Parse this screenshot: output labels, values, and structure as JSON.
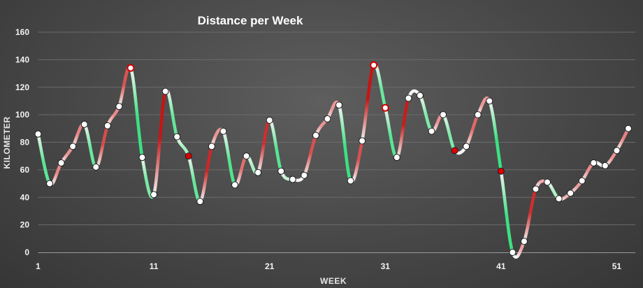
{
  "chart_data": {
    "type": "line",
    "title": "Distance per Week",
    "xlabel": "WEEK",
    "ylabel": "KILOMETER",
    "xlim": [
      1,
      52
    ],
    "ylim": [
      0,
      160
    ],
    "y_ticks": [
      0,
      20,
      40,
      60,
      80,
      100,
      120,
      140,
      160
    ],
    "x_ticks": [
      1,
      11,
      21,
      31,
      41,
      51
    ],
    "grid": true,
    "smooth": true,
    "series": [
      {
        "x": [
          1,
          2,
          3,
          4,
          5,
          6,
          7,
          8,
          9,
          10,
          11,
          12,
          13,
          14,
          15,
          16,
          17,
          18,
          19,
          20,
          21,
          22,
          23,
          24,
          25,
          26,
          27,
          28,
          29,
          30,
          31,
          32,
          33,
          34,
          35,
          36,
          37,
          38,
          39,
          40,
          41,
          42,
          43,
          44,
          45,
          46,
          47,
          48,
          49,
          50,
          51,
          52
        ],
        "values": [
          86,
          50,
          65,
          77,
          93,
          62,
          92,
          106,
          134,
          69,
          42,
          117,
          84,
          70,
          37,
          77,
          88,
          49,
          70,
          58,
          96,
          59,
          53,
          56,
          85,
          97,
          107,
          52,
          81,
          136,
          105,
          69,
          112,
          114,
          88,
          100,
          74,
          77,
          100,
          110,
          59,
          0,
          8,
          46,
          51,
          39,
          43,
          52,
          65,
          63,
          74,
          90
        ],
        "highlight_red": [
          14,
          37,
          41
        ],
        "highlight_ring": [
          9,
          30,
          31
        ]
      }
    ],
    "colors": {
      "increase": "#e03b3b",
      "decrease": "#57e08a",
      "neutral": "#f7f7f7",
      "highlight": "#e00000",
      "grid": "#6b6b6b",
      "axis": "#9a9a9a"
    }
  }
}
